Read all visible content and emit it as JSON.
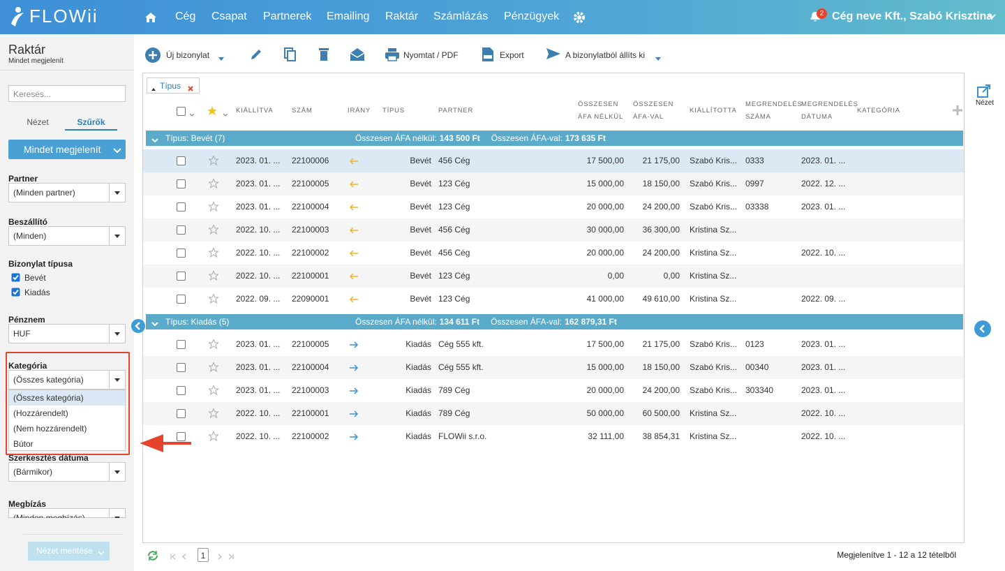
{
  "nav": {
    "logo": "FLOWii",
    "menu": [
      "Cég",
      "Csapat",
      "Partnerek",
      "Emailing",
      "Raktár",
      "Számlázás",
      "Pénzügyek"
    ],
    "badge": "2",
    "user": "Cég neve Kft., Szabó Krisztina"
  },
  "sidebar": {
    "title": "Raktár",
    "subtitle": "Mindet megjelenít",
    "search": "Keresés...",
    "tabs": [
      "Nézet",
      "Szűrők"
    ],
    "show_all": "Mindet megjelenít",
    "partner": {
      "label": "Partner",
      "value": "(Minden partner)"
    },
    "supplier": {
      "label": "Beszállító",
      "value": "(Minden)"
    },
    "doc_type": {
      "label": "Bizonylat típusa",
      "options": [
        "Bevét",
        "Kiadás"
      ]
    },
    "currency": {
      "label": "Pénznem",
      "value": "HUF"
    },
    "category": {
      "label": "Kategória",
      "value": "(Összes kategória)",
      "options": [
        "(Összes kategória)",
        "(Hozzárendelt)",
        "(Nem hozzárendelt)",
        "Bútor"
      ]
    },
    "edit_date": {
      "label": "Szerkesztés dátuma",
      "value": "(Bármikor)"
    },
    "assignment": {
      "label": "Megbízás",
      "value": "(Minden megbízás)"
    },
    "save_view": "Nézet mentése"
  },
  "toolbar": {
    "new": "Új bizonylat",
    "print": "Nyomtat / PDF",
    "export": "Export",
    "issue": "A bizonylatból állíts ki"
  },
  "filter_chip": "Típus",
  "right_panel": {
    "view": "Nézet"
  },
  "table": {
    "headers": [
      "KIÁLLÍTVA",
      "SZÁM",
      "IRÁNY",
      "TÍPUS",
      "PARTNER",
      "ÖSSZESEN ÁFA NÉLKÜL",
      "ÖSSZESEN ÁFA-VAL",
      "KIÁLLÍTOTTA",
      "MEGRENDELÉS SZÁMA",
      "MEGRENDELÉS DÁTUMA",
      "KATEGÓRIA"
    ],
    "groups": [
      {
        "title": "Típus: Bevét (7)",
        "net_label": "Összesen ÁFA nélkül:",
        "net": "143 500 Ft",
        "gross_label": "Összesen ÁFA-val:",
        "gross": "173 635 Ft",
        "rows": [
          [
            "2023. 01. ...",
            "22100006",
            "Bevét",
            "456 Cég",
            "17 500,00",
            "21 175,00",
            "Szabó Kris...",
            "0333",
            "2023. 01. ..."
          ],
          [
            "2023. 01. ...",
            "22100005",
            "Bevét",
            "123 Cég",
            "15 000,00",
            "18 150,00",
            "Szabó Kris...",
            "0997",
            "2022. 12. ..."
          ],
          [
            "2023. 01. ...",
            "22100004",
            "Bevét",
            "123 Cég",
            "20 000,00",
            "24 200,00",
            "Szabó Kris...",
            "03338",
            "2023. 01. ..."
          ],
          [
            "2022. 10. ...",
            "22100003",
            "Bevét",
            "456 Cég",
            "30 000,00",
            "36 300,00",
            "Kristina Sz...",
            null,
            null
          ],
          [
            "2022. 10. ...",
            "22100002",
            "Bevét",
            "456 Cég",
            "20 000,00",
            "24 200,00",
            "Kristina Sz...",
            null,
            "2022. 10. ..."
          ],
          [
            "2022. 10. ...",
            "22100001",
            "Bevét",
            "123 Cég",
            "0,00",
            "0,00",
            "Kristina Sz...",
            null,
            null
          ],
          [
            "2022. 09. ...",
            "22090001",
            "Bevét",
            "123 Cég",
            "41 000,00",
            "49 610,00",
            "Kristina Sz...",
            null,
            "2022. 09. ..."
          ]
        ]
      },
      {
        "title": "Típus: Kiadás (5)",
        "net_label": "Összesen ÁFA nélkül:",
        "net": "134 611 Ft",
        "gross_label": "Összesen ÁFA-val:",
        "gross": "162 879,31 Ft",
        "rows": [
          [
            "2023. 01. ...",
            "22100005",
            "Kiadás",
            "Cég 555 kft.",
            "17 500,00",
            "21 175,00",
            "Szabó Kris...",
            "0123",
            "2023. 01. ..."
          ],
          [
            "2023. 01. ...",
            "22100004",
            "Kiadás",
            "Cég 555 kft.",
            "15 000,00",
            "18 150,00",
            "Szabó Kris...",
            "00340",
            "2023. 01. ..."
          ],
          [
            "2023. 01. ...",
            "22100003",
            "Kiadás",
            "789 Cég",
            "20 000,00",
            "24 200,00",
            "Szabó Kris...",
            "303340",
            "2023. 01. ..."
          ],
          [
            "2022. 10. ...",
            "22100001",
            "Kiadás",
            "789 Cég",
            "50 000,00",
            "60 500,00",
            "Kristina Sz...",
            null,
            "2022. 10. ..."
          ],
          [
            "2022. 10. ...",
            "22100002",
            "Kiadás",
            "FLOWii s.r.o.",
            "32 111,00",
            "38 854,31",
            "Kristina Sz...",
            null,
            "2022. 10. ..."
          ]
        ]
      }
    ]
  },
  "pager": {
    "page": "1",
    "summary": "Megjelenítve 1 - 12 a 12 tételből"
  }
}
